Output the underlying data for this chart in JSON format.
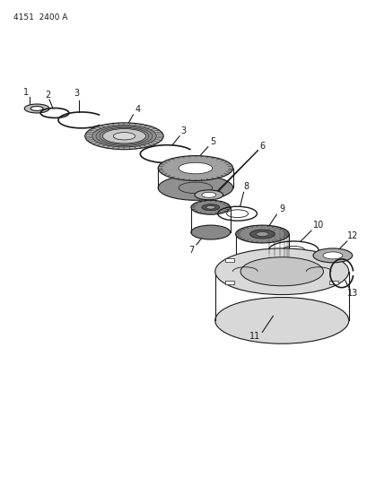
{
  "title_ref": "4151  2400 A",
  "background_color": "#ffffff",
  "line_color": "#1a1a1a",
  "figsize": [
    4.1,
    5.33
  ],
  "dpi": 100
}
